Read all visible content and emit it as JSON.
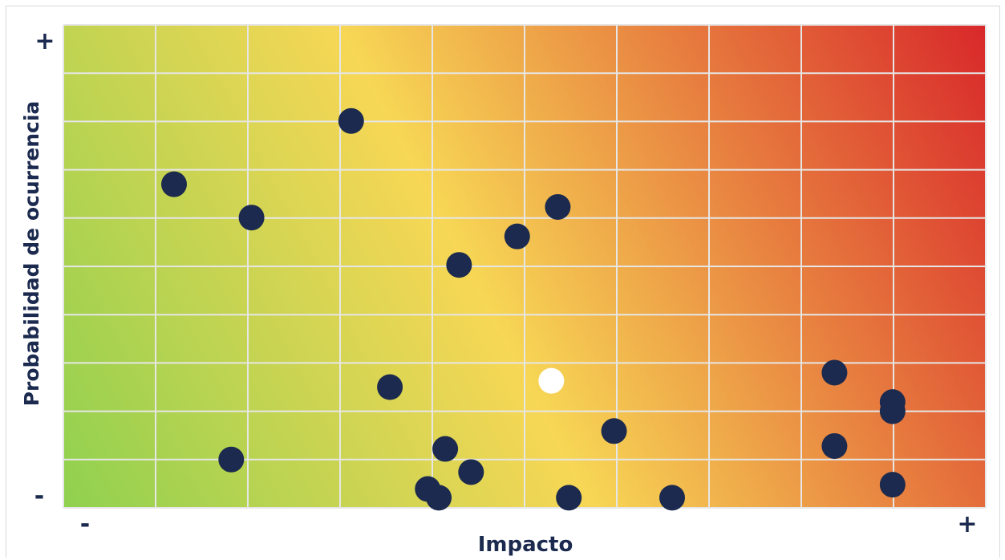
{
  "chart_data": {
    "type": "scatter",
    "xlabel": "Impacto",
    "ylabel": "Probabilidad de ocurrencia",
    "x_tick_labels": {
      "low": "-",
      "high": "+"
    },
    "y_tick_labels": {
      "low": "-",
      "high": "+"
    },
    "xlim": [
      0,
      10
    ],
    "ylim": [
      0,
      10
    ],
    "grid": true,
    "background": "risk-gradient",
    "colors": {
      "low": "#8fd14f",
      "mid": "#f7d755",
      "high": "#d8282a",
      "point": "#1b2a4e",
      "highlight": "#ffffff",
      "grid": "#e6e6e6",
      "text": "#1b2a4e"
    },
    "points": [
      {
        "x": 3.12,
        "y": 8.01,
        "highlight": false
      },
      {
        "x": 1.2,
        "y": 6.7,
        "highlight": false
      },
      {
        "x": 2.04,
        "y": 6.01,
        "highlight": false
      },
      {
        "x": 5.36,
        "y": 6.23,
        "highlight": false
      },
      {
        "x": 4.92,
        "y": 5.62,
        "highlight": false
      },
      {
        "x": 4.29,
        "y": 5.03,
        "highlight": false
      },
      {
        "x": 5.29,
        "y": 2.63,
        "highlight": true
      },
      {
        "x": 3.54,
        "y": 2.5,
        "highlight": false
      },
      {
        "x": 1.82,
        "y": 1.0,
        "highlight": false
      },
      {
        "x": 4.14,
        "y": 1.22,
        "highlight": false
      },
      {
        "x": 4.42,
        "y": 0.74,
        "highlight": false
      },
      {
        "x": 3.95,
        "y": 0.39,
        "highlight": false
      },
      {
        "x": 4.07,
        "y": 0.21,
        "highlight": false
      },
      {
        "x": 5.48,
        "y": 0.21,
        "highlight": false
      },
      {
        "x": 5.97,
        "y": 1.59,
        "highlight": false
      },
      {
        "x": 6.6,
        "y": 0.21,
        "highlight": false
      },
      {
        "x": 8.36,
        "y": 2.8,
        "highlight": false
      },
      {
        "x": 8.36,
        "y": 1.28,
        "highlight": false
      },
      {
        "x": 8.99,
        "y": 2.19,
        "highlight": false
      },
      {
        "x": 8.99,
        "y": 2.0,
        "highlight": false
      },
      {
        "x": 8.99,
        "y": 0.48,
        "highlight": false
      }
    ]
  }
}
